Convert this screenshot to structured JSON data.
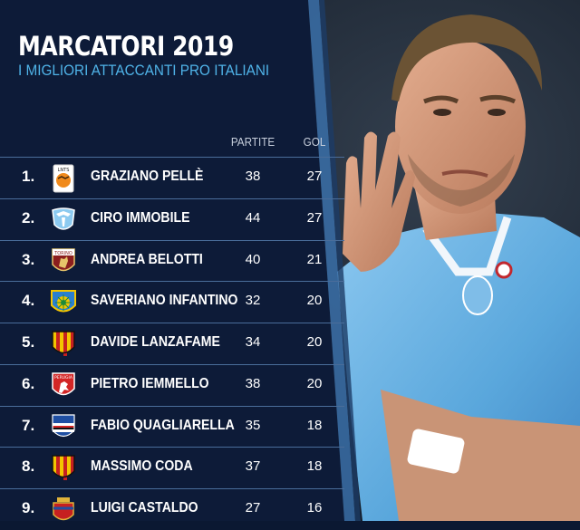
{
  "header": {
    "title": "MARCATORI 2019",
    "subtitle": "I MIGLIORI ATTACCANTI PRO ITALIANI"
  },
  "columns": {
    "matches": "PARTITE",
    "goals": "GOL"
  },
  "players": [
    {
      "rank": "1.",
      "name": "GRAZIANO PELLÈ",
      "matches": "38",
      "goals": "27",
      "crest": "shandong-luneng-crest",
      "crest_text": "LNTS"
    },
    {
      "rank": "2.",
      "name": "CIRO IMMOBILE",
      "matches": "44",
      "goals": "27",
      "crest": "lazio-eagle-crest",
      "crest_text": ""
    },
    {
      "rank": "3.",
      "name": "ANDREA BELOTTI",
      "matches": "40",
      "goals": "21",
      "crest": "torino-bull-crest",
      "crest_text": "TORINO"
    },
    {
      "rank": "4.",
      "name": "SAVERIANO INFANTINO",
      "matches": "32",
      "goals": "20",
      "crest": "carrarese-crest",
      "crest_text": ""
    },
    {
      "rank": "5.",
      "name": "DAVIDE LANZAFAME",
      "matches": "34",
      "goals": "20",
      "crest": "benevento-crest",
      "crest_text": ""
    },
    {
      "rank": "6.",
      "name": "PIETRO IEMMELLO",
      "matches": "38",
      "goals": "20",
      "crest": "perugia-griffin-crest",
      "crest_text": "PERUGIA"
    },
    {
      "rank": "7.",
      "name": "FABIO QUAGLIARELLA",
      "matches": "35",
      "goals": "18",
      "crest": "sampdoria-crest",
      "crest_text": ""
    },
    {
      "rank": "8.",
      "name": "MASSIMO CODA",
      "matches": "37",
      "goals": "18",
      "crest": "benevento-crest",
      "crest_text": ""
    },
    {
      "rank": "9.",
      "name": "LUIGI CASTALDO",
      "matches": "27",
      "goals": "16",
      "crest": "casertana-crest",
      "crest_text": ""
    }
  ],
  "colors": {
    "panel": "#0d1b38",
    "accent_blue": "#4fb3e8",
    "divider": "#4a6d9a",
    "lazio_sky": "#6fb4e6"
  }
}
